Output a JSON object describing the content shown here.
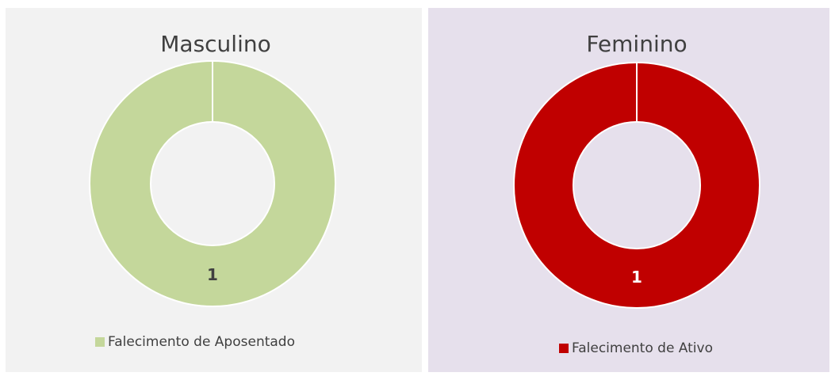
{
  "chart_data": [
    {
      "type": "donut",
      "title": "Masculino",
      "categories": [
        "Falecimento de Aposentado"
      ],
      "values": [
        1
      ],
      "colors": [
        "#c4d79b"
      ]
    },
    {
      "type": "donut",
      "title": "Feminino",
      "categories": [
        "Falecimento de Ativo"
      ],
      "values": [
        1
      ],
      "colors": [
        "#c00000"
      ]
    }
  ]
}
